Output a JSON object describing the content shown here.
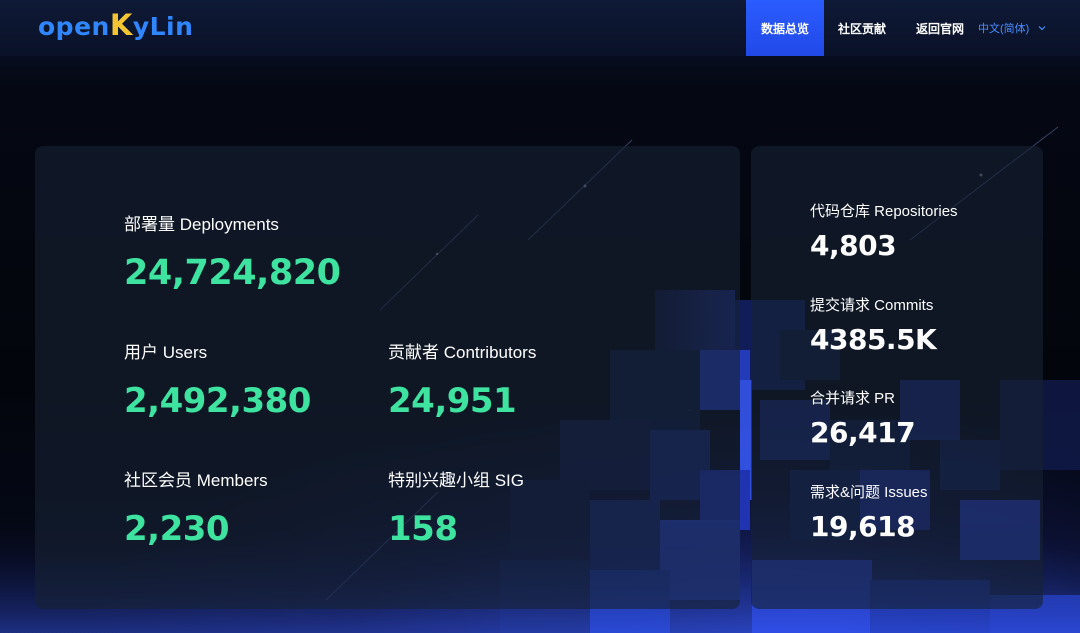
{
  "header": {
    "logo": {
      "open": "open",
      "k": "K",
      "ylin": "yLin"
    },
    "nav": {
      "overview": "数据总览",
      "community": "社区贡献",
      "official": "返回官网"
    },
    "language": {
      "selected": "中文(简体)"
    }
  },
  "main_card": {
    "deployments": {
      "label": "部署量 Deployments",
      "value": "24,724,820"
    },
    "users": {
      "label": "用户 Users",
      "value": "2,492,380"
    },
    "contributors": {
      "label": "贡献者 Contributors",
      "value": "24,951"
    },
    "members": {
      "label": "社区会员 Members",
      "value": "2,230"
    },
    "sig": {
      "label": "特别兴趣小组 SIG",
      "value": "158"
    }
  },
  "side_card": {
    "repositories": {
      "label": "代码仓库 Repositories",
      "value": "4,803"
    },
    "commits": {
      "label": "提交请求 Commits",
      "value": "4385.5K"
    },
    "pr": {
      "label": "合并请求 PR",
      "value": "26,417"
    },
    "issues": {
      "label": "需求&问题 Issues",
      "value": "19,618"
    }
  },
  "colors": {
    "accent_blue": "#2b5cff",
    "stat_green": "#3fe3a0",
    "logo_blue": "#2f86ff",
    "logo_yellow": "#f4c531"
  },
  "icons": {
    "language_dropdown": "chevron-down-icon"
  }
}
